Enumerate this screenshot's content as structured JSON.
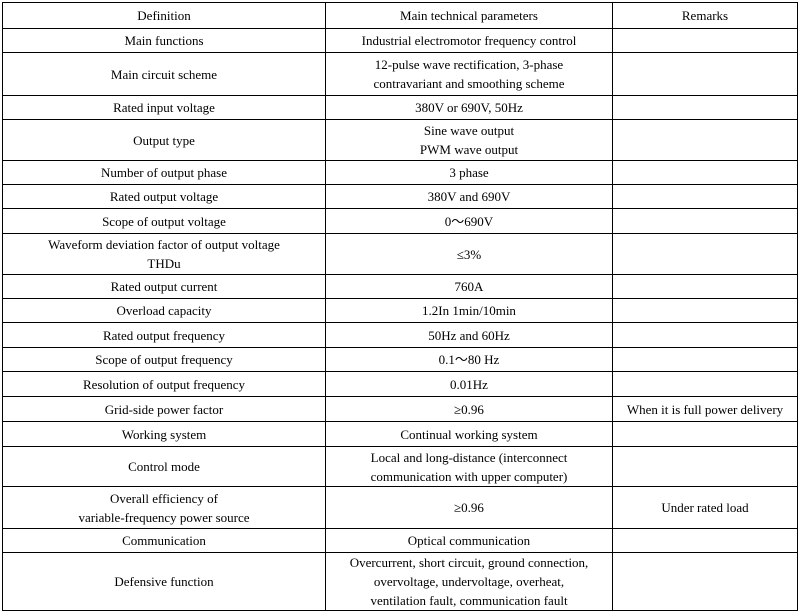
{
  "header": [
    "Definition",
    "Main technical parameters",
    "Remarks"
  ],
  "rows": [
    [
      "Main functions",
      "Industrial electromotor frequency control",
      ""
    ],
    [
      "Main circuit scheme",
      "12-pulse wave rectification, 3-phase\ncontravariant and smoothing scheme",
      ""
    ],
    [
      "Rated input voltage",
      "380V or 690V, 50Hz",
      ""
    ],
    [
      "Output type",
      "Sine wave output\nPWM wave output",
      ""
    ],
    [
      "Number of output phase",
      "3 phase",
      ""
    ],
    [
      "Rated output voltage",
      "380V and 690V",
      ""
    ],
    [
      "Scope of output voltage",
      "0～690V",
      ""
    ],
    [
      "Waveform deviation factor of output voltage\nTHDu",
      "≤3%",
      ""
    ],
    [
      "Rated output current",
      "760A",
      ""
    ],
    [
      "Overload capacity",
      "1.2In 1min/10min",
      ""
    ],
    [
      "Rated output frequency",
      "50Hz and 60Hz",
      ""
    ],
    [
      "Scope of output frequency",
      "0.1～80 Hz",
      ""
    ],
    [
      "Resolution of output frequency",
      "0.01Hz",
      ""
    ],
    [
      "Grid-side power factor",
      "≥0.96",
      "When it is full power delivery"
    ],
    [
      "Working system",
      "Continual working system",
      ""
    ],
    [
      "Control mode",
      "Local and long-distance (interconnect\ncommunication with upper computer)",
      ""
    ],
    [
      "Overall efficiency of\nvariable-frequency power source",
      "≥0.96",
      "Under rated load"
    ],
    [
      "Communication",
      "Optical communication",
      ""
    ],
    [
      "Defensive function",
      "Overcurrent, short circuit, ground connection,\novervoltage, undervoltage, overheat,\nventilation fault, communication fault",
      ""
    ]
  ]
}
